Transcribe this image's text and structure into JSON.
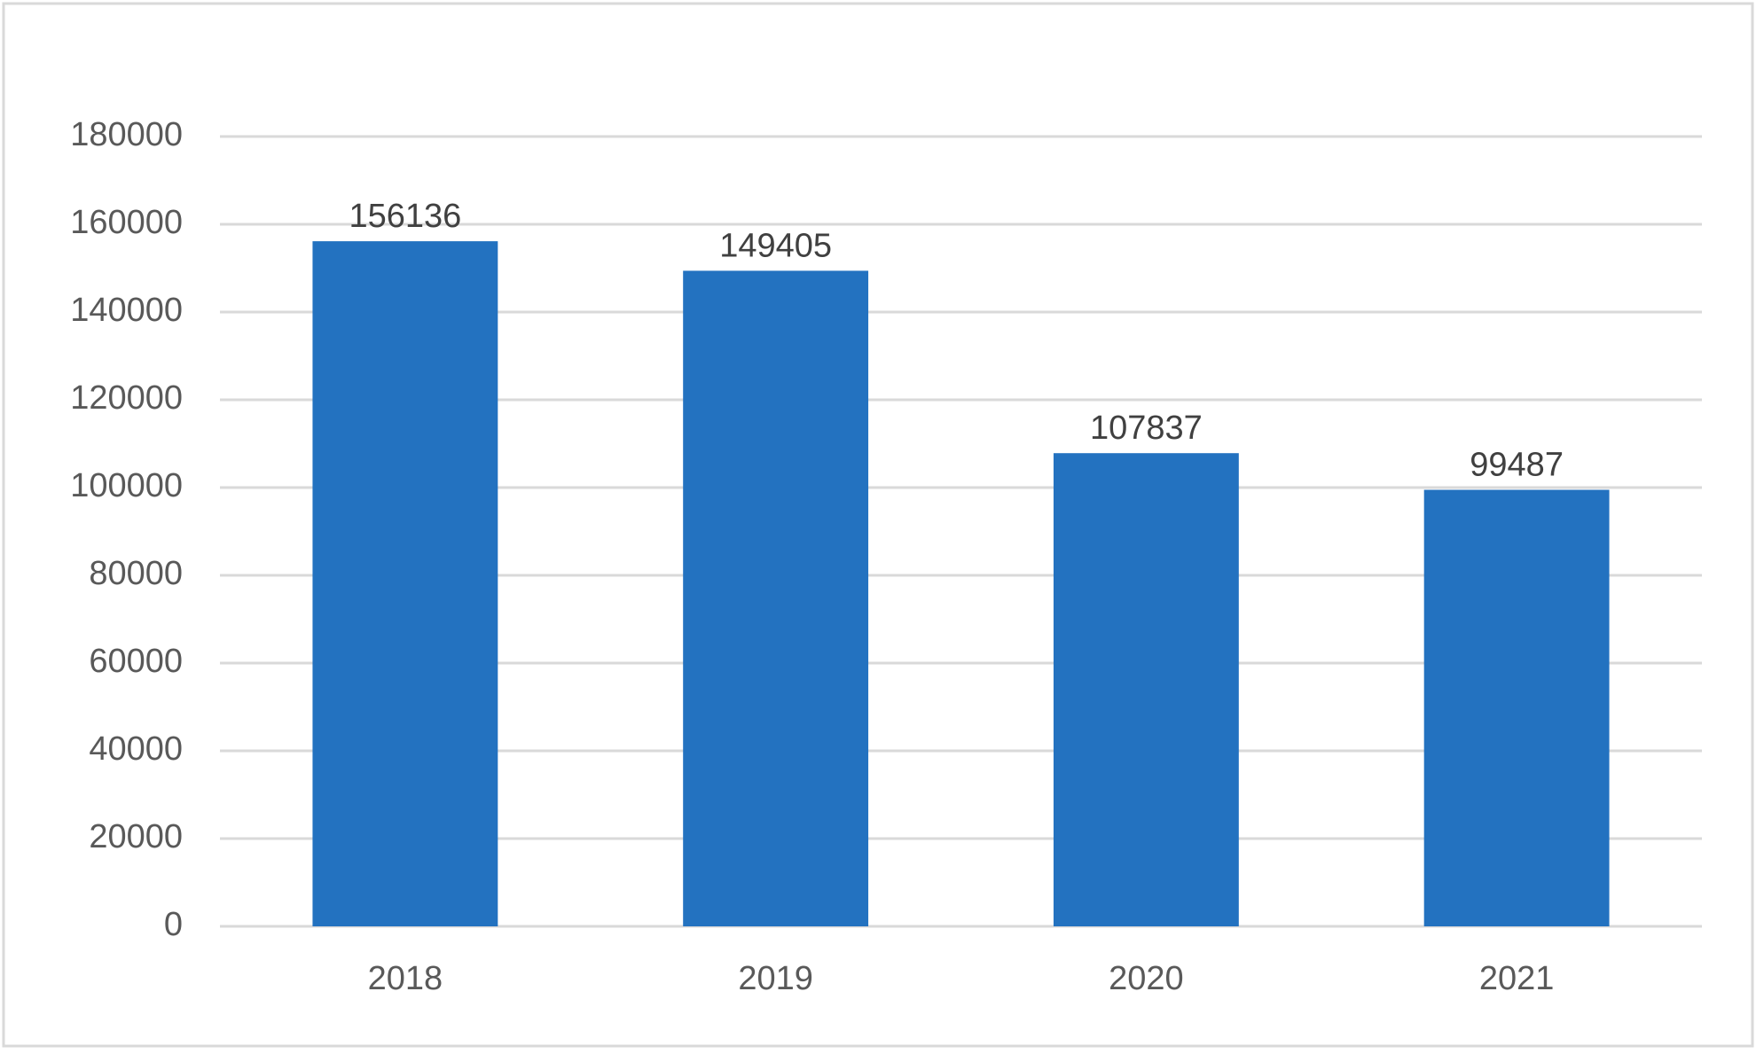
{
  "chart_data": {
    "type": "bar",
    "categories": [
      "2018",
      "2019",
      "2020",
      "2021"
    ],
    "values": [
      156136,
      149405,
      107837,
      99487
    ],
    "color": "#2372c0",
    "ylim": [
      0,
      180000
    ],
    "yticks": [
      0,
      20000,
      40000,
      60000,
      80000,
      100000,
      120000,
      140000,
      160000,
      180000
    ],
    "grid": true,
    "data_labels": true
  }
}
